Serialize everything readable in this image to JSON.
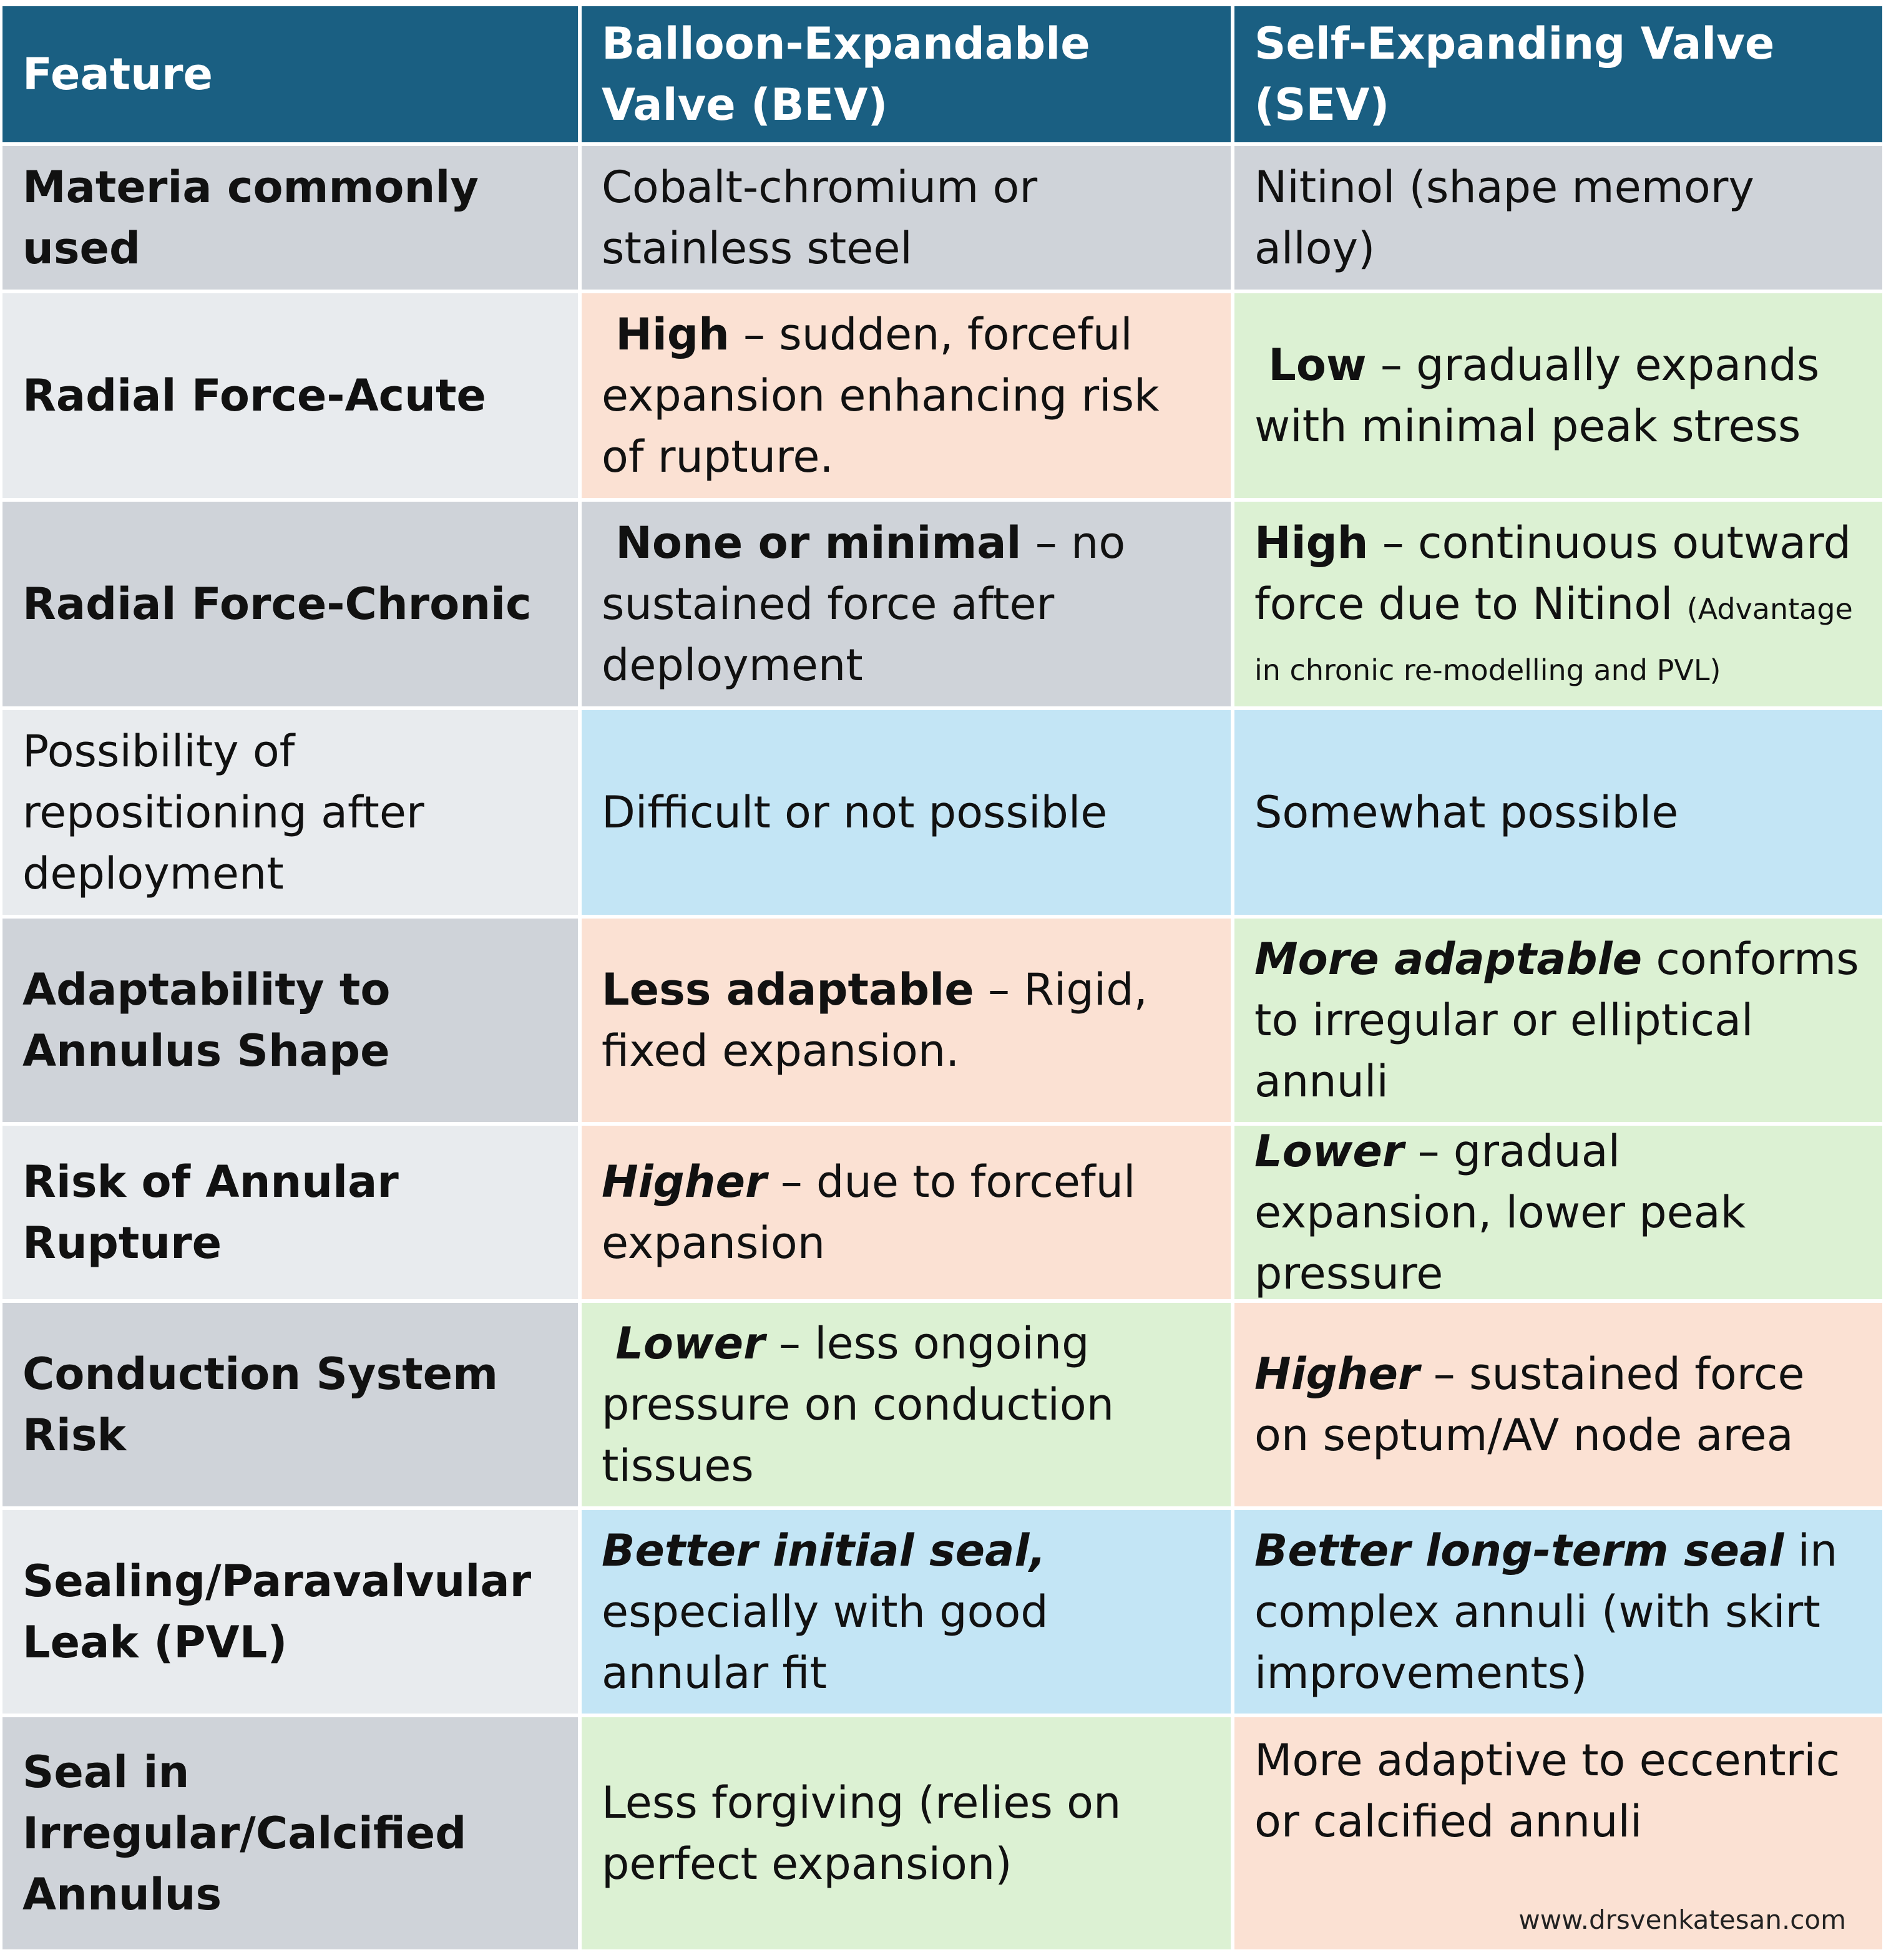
{
  "header": {
    "feature": "Feature",
    "bev": "Balloon-Expandable Valve (BEV)",
    "sev": "Self-Expanding Valve (SEV)"
  },
  "rows": [
    {
      "feature": "Materia commonly used",
      "bev": {
        "plain": "Cobalt-chromium or stainless steel"
      },
      "sev": {
        "plain": "Nitinol (shape memory alloy)"
      }
    },
    {
      "feature": "Radial Force-Acute",
      "bev": {
        "lead": "High",
        "rest": " – sudden, forceful expansion enhancing  risk of rupture."
      },
      "sev": {
        "lead": "Low",
        "rest": " – gradually expands with minimal peak stress"
      }
    },
    {
      "feature": "Radial Force-Chronic",
      "bev": {
        "lead": "None or minimal",
        "rest": " – no sustained force after deployment"
      },
      "sev": {
        "lead": "High",
        "rest": " – continuous outward force due to Nitinol ",
        "note": "(Advantage in chronic re-modelling and PVL)"
      }
    },
    {
      "feature": "Possibility of repositioning after deployment",
      "bev": {
        "plain": "Difficult or not possible"
      },
      "sev": {
        "plain": "Somewhat possible"
      }
    },
    {
      "feature": "Adaptability to Annulus Shape",
      "bev": {
        "lead": "Less adaptable",
        "rest": " – Rigid, fixed expansion."
      },
      "sev": {
        "lead": "More adaptable",
        "rest": "  conforms to irregular or elliptical annuli"
      }
    },
    {
      "feature": "Risk of Annular Rupture",
      "bev": {
        "lead": "Higher",
        "rest": " – due to forceful expansion"
      },
      "sev": {
        "lead": "Lower",
        "rest": " – gradual expansion, lower peak pressure"
      }
    },
    {
      "feature": "Conduction System Risk",
      "bev": {
        "lead": "Lower",
        "rest": " – less ongoing pressure on conduction tissues"
      },
      "sev": {
        "lead": "Higher",
        "rest": " – sustained force on septum/AV node area"
      }
    },
    {
      "feature": "Sealing/Paravalvular Leak (PVL)",
      "bev": {
        "lead": "Better initial seal,",
        "rest": " especially with good annular fit"
      },
      "sev": {
        "lead": "Better long-term seal",
        "rest": " in complex annuli (with skirt improvements)"
      }
    },
    {
      "feature": "Seal in Irregular/Calcified Annulus",
      "bev": {
        "plain": "Less forgiving (relies on perfect expansion)"
      },
      "sev": {
        "plain": "More adaptive to eccentric or calcified annuli"
      }
    }
  ],
  "watermark": "www.drsvenkatesan.com",
  "colors": {
    "header_bg": "#1a5f82",
    "feature_dark": "#cfd3d9",
    "feature_light": "#e8ebee",
    "peach": "#fbe1d3",
    "green": "#dcf1d3",
    "blue": "#c3e5f5",
    "gray": "#cfd3d9"
  }
}
